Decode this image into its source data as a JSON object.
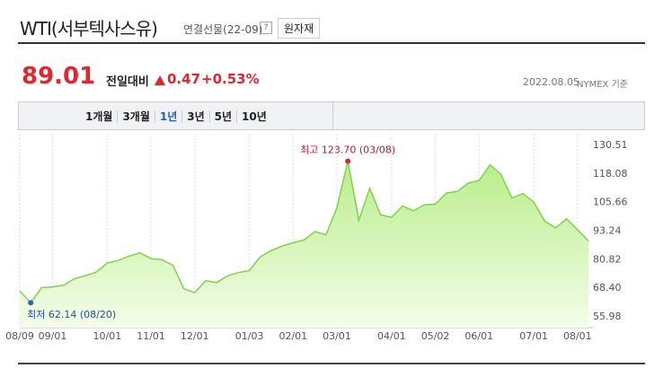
{
  "header": {
    "title": "WTI(서부텍사스유)",
    "subtitle": "연결선물(22-09)",
    "help": "?",
    "button": "원자재"
  },
  "quote": {
    "price": "89.01",
    "change_label": "전일대비",
    "change": "0.47",
    "change_pct": "+0.53%",
    "date": "2022.08.05",
    "source": "NYMEX 기준"
  },
  "tabs": [
    "1개월",
    "3개월",
    "1년",
    "3년",
    "5년",
    "10년"
  ],
  "active_tab": 2,
  "chart_data": {
    "type": "area",
    "color": "#7fd34a",
    "categories": [
      "08/09",
      null,
      null,
      "09/01",
      null,
      null,
      null,
      null,
      "10/01",
      null,
      null,
      null,
      "11/01",
      null,
      null,
      null,
      "12/01",
      null,
      null,
      null,
      null,
      "01/03",
      null,
      null,
      null,
      "02/01",
      null,
      null,
      null,
      "03/01",
      null,
      null,
      null,
      null,
      "04/01",
      null,
      null,
      null,
      "05/02",
      null,
      null,
      null,
      "06/01",
      null,
      null,
      null,
      null,
      "07/01",
      null,
      null,
      null,
      "08/01",
      null
    ],
    "series": [
      {
        "values": [
          67.3,
          62.14,
          68.7,
          69.0,
          69.7,
          72.6,
          73.9,
          75.4,
          79.4,
          80.5,
          82.4,
          83.8,
          81.3,
          80.8,
          78.4,
          68.2,
          66.5,
          71.7,
          70.9,
          73.8,
          75.2,
          76.1,
          82.1,
          84.8,
          86.8,
          88.2,
          89.4,
          93.1,
          91.6,
          103.4,
          123.7,
          98.0,
          111.8,
          100.3,
          99.3,
          104.2,
          102.1,
          104.7,
          105.0,
          109.8,
          110.5,
          114.1,
          115.3,
          122.1,
          118.0,
          107.6,
          109.6,
          105.8,
          97.6,
          94.7,
          98.6,
          93.9,
          89.01
        ]
      }
    ],
    "ylim": [
      55.98,
      130.51
    ],
    "yticks": [
      55.98,
      {
        "value": 68.4,
        "label": "68.40"
      },
      80.82,
      93.24,
      105.66,
      118.08,
      130.51
    ],
    "annotations": [
      {
        "text": "최고 123.70 (03/08)",
        "index": 30
      },
      {
        "text": "최저 62.14 (08/20)",
        "index": 1
      }
    ]
  }
}
